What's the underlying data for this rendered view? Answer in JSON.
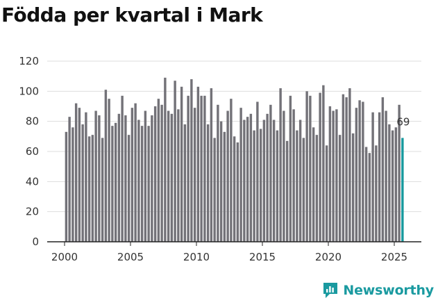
{
  "chart_data": {
    "type": "bar",
    "title": "Födda per kvartal i Mark",
    "xlabel": "",
    "ylabel": "",
    "ylim": [
      0,
      120
    ],
    "yticks": [
      0,
      20,
      40,
      60,
      80,
      100,
      120
    ],
    "xticks": [
      "2000",
      "2005",
      "2010",
      "2015",
      "2020",
      "2025"
    ],
    "grid": true,
    "start_quarter": "2000 Q1",
    "values": [
      73,
      83,
      76,
      92,
      89,
      78,
      86,
      70,
      71,
      87,
      84,
      69,
      101,
      95,
      77,
      79,
      85,
      97,
      84,
      71,
      89,
      92,
      81,
      77,
      87,
      77,
      84,
      90,
      95,
      91,
      109,
      87,
      85,
      107,
      88,
      103,
      78,
      97,
      108,
      89,
      103,
      97,
      97,
      78,
      102,
      69,
      91,
      80,
      73,
      87,
      95,
      70,
      66,
      89,
      81,
      83,
      85,
      74,
      93,
      75,
      81,
      85,
      91,
      81,
      74,
      102,
      87,
      67,
      97,
      88,
      74,
      81,
      69,
      100,
      97,
      76,
      71,
      99,
      104,
      64,
      90,
      87,
      88,
      71,
      98,
      96,
      102,
      72,
      89,
      94,
      93,
      63,
      59,
      86,
      64,
      86,
      96,
      87,
      78,
      74,
      76,
      91,
      69
    ],
    "highlight_label": "69",
    "colors": {
      "bar": "#737278",
      "highlight": "#17999e",
      "grid": "#dddddd",
      "axis": "#222222"
    }
  },
  "brand": {
    "name": "Newsworthy"
  }
}
